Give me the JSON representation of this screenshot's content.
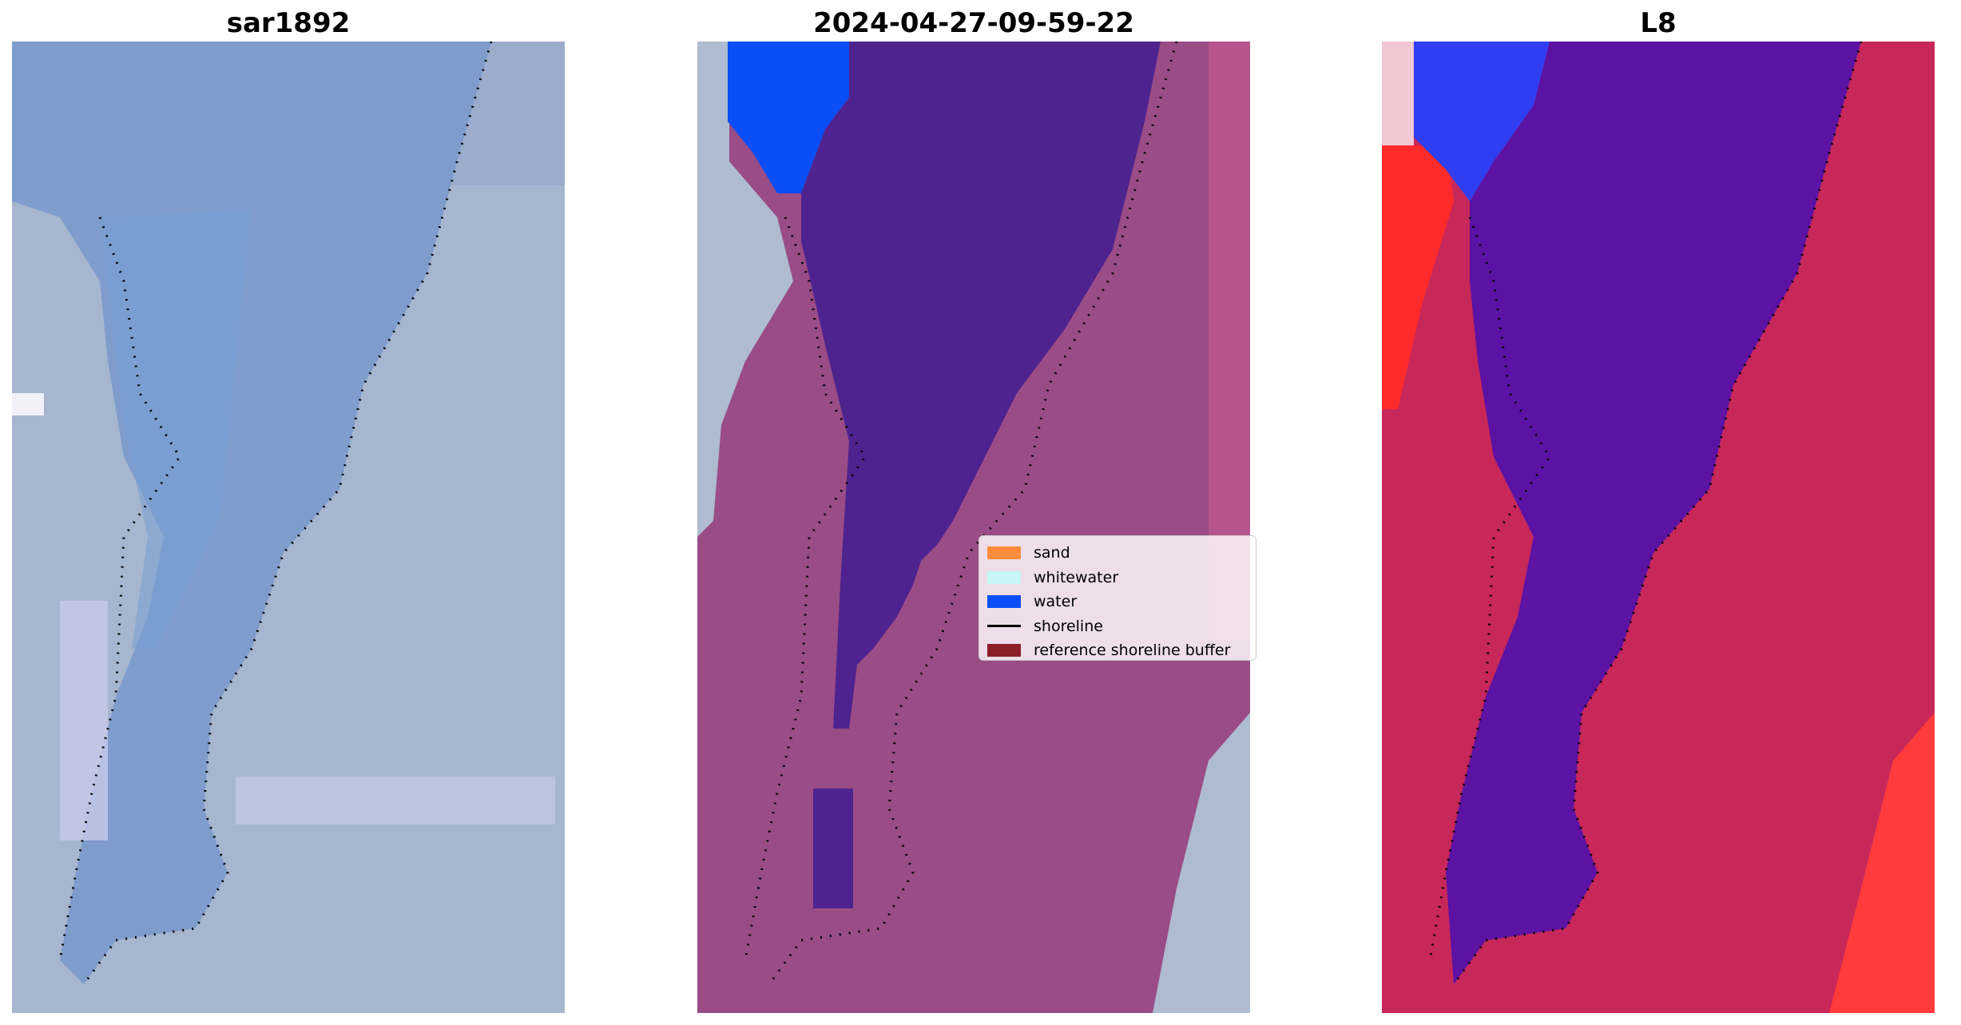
{
  "panels": [
    {
      "title": "sar1892",
      "image_desc": "satellite-rgb"
    },
    {
      "title": "2024-04-27-09-59-22",
      "image_desc": "classified"
    },
    {
      "title": "L8",
      "image_desc": "water-index"
    }
  ],
  "legend": {
    "items": [
      {
        "label": "sand",
        "color": "#ff8c3c",
        "kind": "patch"
      },
      {
        "label": "whitewater",
        "color": "#c8f5f5",
        "kind": "patch"
      },
      {
        "label": "water",
        "color": "#0a4ef7",
        "kind": "patch"
      },
      {
        "label": "shoreline",
        "color": "#000000",
        "kind": "line"
      },
      {
        "label": "reference shoreline buffer",
        "color": "#8c1e28",
        "kind": "patch"
      }
    ]
  },
  "colors": {
    "sar_water": "#7e9ccc",
    "sar_land": "#a7b6cf",
    "class_land": "#9a4c86",
    "class_water": "#4f238f",
    "class_blue": "#0a4ef7",
    "index_land": "#c8275a",
    "index_water": "#5c12a3",
    "index_red": "#ff2a2a",
    "index_blue": "#2f3ef0",
    "shoreline": "#000000"
  }
}
